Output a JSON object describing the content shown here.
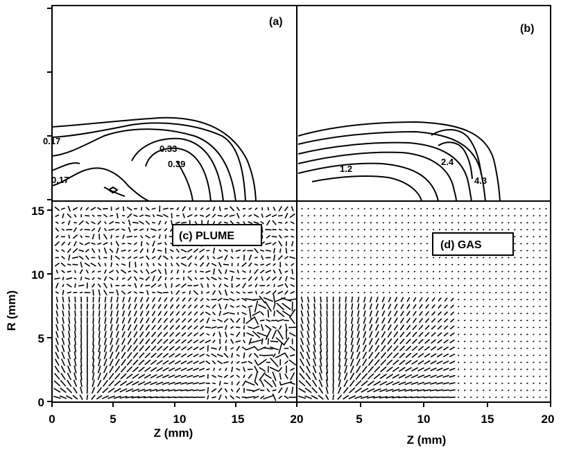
{
  "chart_data": [
    {
      "panel": "a",
      "type": "contour",
      "tag": "(a)",
      "contour_labels": [
        "0.17",
        "0.33",
        "0.39",
        "0.17"
      ]
    },
    {
      "panel": "b",
      "type": "contour",
      "tag": "(b)",
      "contour_labels": [
        "1.2",
        "2.4",
        "4.3"
      ]
    },
    {
      "panel": "c",
      "type": "quiver",
      "tag": "(c) PLUME",
      "xlabel": "Z (mm)",
      "ylabel": "R (mm)",
      "xlim": [
        0,
        20
      ],
      "ylim": [
        0,
        15
      ],
      "x_ticks": [
        "0",
        "5",
        "10",
        "15",
        "20"
      ],
      "y_ticks": [
        "0",
        "5",
        "10",
        "15"
      ]
    },
    {
      "panel": "d",
      "type": "quiver",
      "tag": "(d) GAS",
      "xlabel": "Z (mm)",
      "xlim": [
        0,
        20
      ],
      "ylim": [
        0,
        15
      ],
      "x_ticks": [
        "0",
        "5",
        "10",
        "15",
        "20"
      ]
    }
  ]
}
